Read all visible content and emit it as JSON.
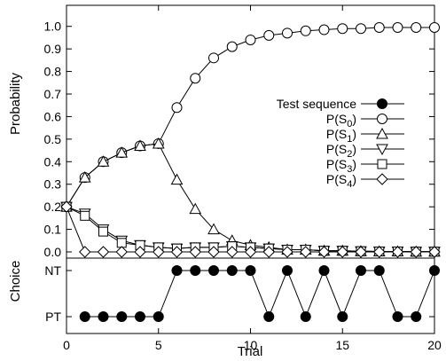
{
  "chart_data": {
    "type": "line",
    "xlabel": "Trial",
    "x": [
      0,
      1,
      2,
      3,
      4,
      5,
      6,
      7,
      8,
      9,
      10,
      11,
      12,
      13,
      14,
      15,
      16,
      17,
      18,
      19,
      20
    ],
    "xlim": [
      0,
      20
    ],
    "x_ticks": [
      "0",
      "5",
      "10",
      "15",
      "20"
    ],
    "grid": false,
    "legend_placement": "right",
    "top_panel": {
      "ylabel": "Probability",
      "ylim": [
        0,
        1.05
      ],
      "y_ticks": [
        "0.0",
        "0.1",
        "0.2",
        "0.3",
        "0.4",
        "0.5",
        "0.6",
        "0.7",
        "0.8",
        "0.9",
        "1.0"
      ],
      "series": [
        {
          "name": "P(S0)",
          "label_main": "P(S",
          "label_sub": "0",
          "label_end": ")",
          "marker": "circle",
          "values": [
            0.2,
            0.33,
            0.4,
            0.44,
            0.47,
            0.48,
            0.64,
            0.77,
            0.86,
            0.91,
            0.94,
            0.96,
            0.97,
            0.98,
            0.985,
            0.99,
            0.99,
            0.995,
            0.995,
            0.995,
            0.995
          ]
        },
        {
          "name": "P(S1)",
          "label_main": "P(S",
          "label_sub": "1",
          "label_end": ")",
          "marker": "triangle-up",
          "values": [
            0.2,
            0.33,
            0.4,
            0.44,
            0.47,
            0.48,
            0.32,
            0.19,
            0.1,
            0.05,
            0.03,
            0.02,
            0.01,
            0.01,
            0.005,
            0.005,
            0.003,
            0.002,
            0.002,
            0.001,
            0.001
          ]
        },
        {
          "name": "P(S2)",
          "label_main": "P(S",
          "label_sub": "2",
          "label_end": ")",
          "marker": "triangle-down",
          "values": [
            0.2,
            0.17,
            0.1,
            0.05,
            0.03,
            0.02,
            0.015,
            0.02,
            0.02,
            0.025,
            0.02,
            0.015,
            0.01,
            0.01,
            0.005,
            0.005,
            0.003,
            0.002,
            0.002,
            0.001,
            0.001
          ]
        },
        {
          "name": "P(S3)",
          "label_main": "P(S",
          "label_sub": "3",
          "label_end": ")",
          "marker": "square",
          "values": [
            0.2,
            0.16,
            0.09,
            0.04,
            0.03,
            0.02,
            0.015,
            0.02,
            0.02,
            0.025,
            0.02,
            0.015,
            0.01,
            0.01,
            0.005,
            0.005,
            0.003,
            0.002,
            0.002,
            0.001,
            0.001
          ]
        },
        {
          "name": "P(S4)",
          "label_main": "P(S",
          "label_sub": "4",
          "label_end": ")",
          "marker": "diamond",
          "values": [
            0.2,
            0.0,
            0.0,
            0.0,
            0.0,
            0.0,
            0.0,
            0.0,
            0.0,
            0.0,
            0.0,
            0.0,
            0.0,
            0.0,
            0.0,
            0.0,
            0.0,
            0.0,
            0.0,
            0.0,
            0.0
          ]
        }
      ]
    },
    "bottom_panel": {
      "ylabel": "Choice",
      "categories": [
        "PT",
        "NT"
      ],
      "series": [
        {
          "name": "Test sequence",
          "label_main": "Test sequence",
          "label_sub": "",
          "label_end": "",
          "marker": "filled-circle",
          "values": [
            "PT",
            "PT",
            "PT",
            "PT",
            "PT",
            "NT",
            "NT",
            "NT",
            "NT",
            "NT",
            "PT",
            "NT",
            "PT",
            "NT",
            "PT",
            "NT",
            "NT",
            "PT",
            "PT",
            "NT"
          ],
          "x": [
            1,
            2,
            3,
            4,
            5,
            6,
            7,
            8,
            9,
            10,
            11,
            12,
            13,
            14,
            15,
            16,
            17,
            18,
            19,
            20
          ]
        }
      ]
    }
  }
}
